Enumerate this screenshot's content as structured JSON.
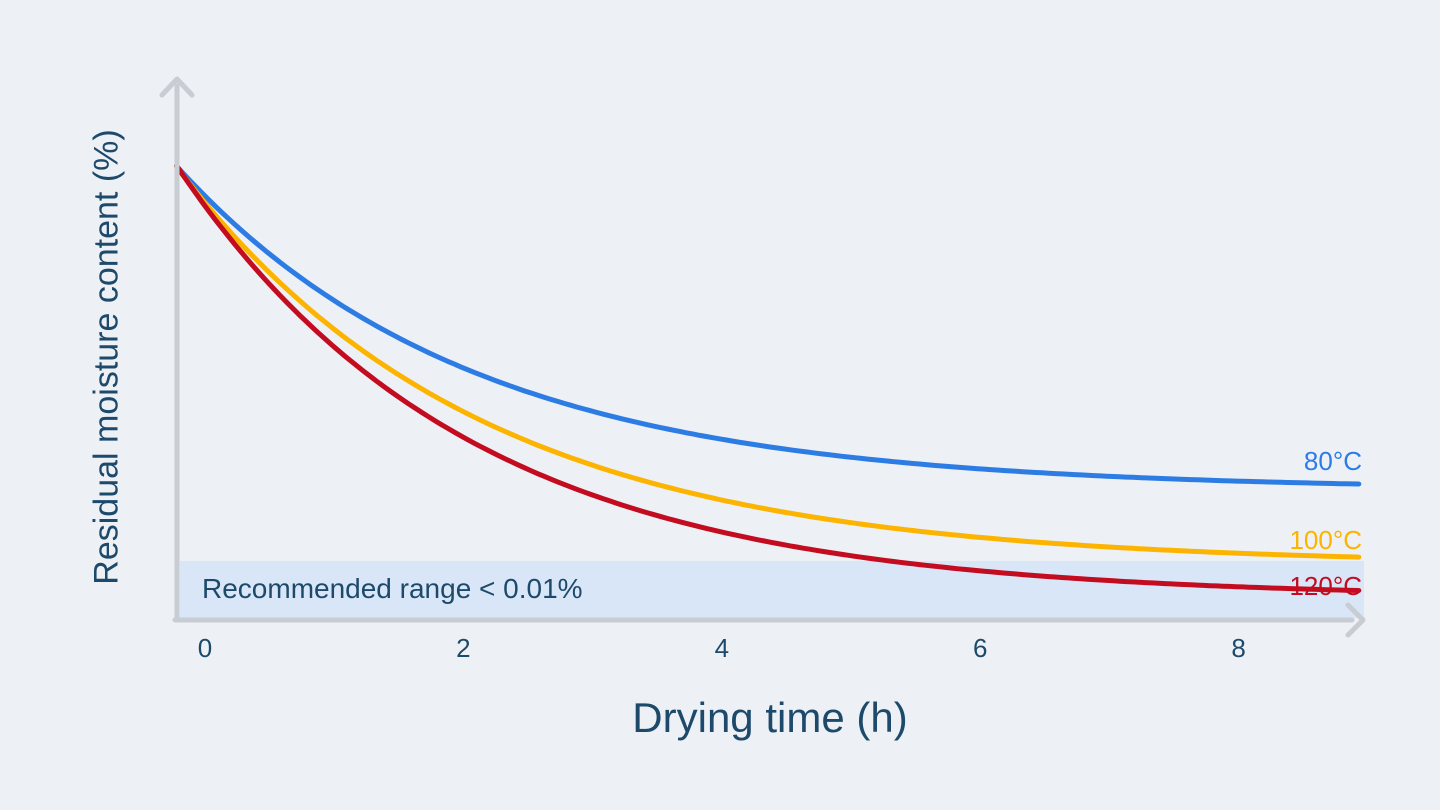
{
  "colors": {
    "background": "#edf1f6",
    "axis": "#c8ccd3",
    "ink_dark_blue": "#1d4a6b",
    "band_fill": "#d9e6f7",
    "series_80c": "#2d7ce4",
    "series_100c": "#fcb400",
    "series_120c": "#c40c20"
  },
  "chart_data": {
    "type": "line",
    "title": "",
    "xlabel": "Drying time (h)",
    "ylabel": "Residual moisture content (%)",
    "x_ticks": [
      0,
      2,
      4,
      6,
      8
    ],
    "x_range_hours": [
      -0.22,
      8.96
    ],
    "y_axis_note": "unlabeled axis; values below are relative moisture (100 = initial content at axis)",
    "grid": false,
    "legend_position": "labels at right end of each curve",
    "initial_relative": 100,
    "t_initial": -0.22,
    "band": {
      "label": "Recommended range < 0.01%",
      "from_relative": 0,
      "to_relative": 13.2
    },
    "series": [
      {
        "name": "80°C",
        "color": "#2d7ce4",
        "model": {
          "type": "exponential_decay",
          "baseline": 28.8,
          "amplitude": 65.0,
          "k_per_hour": 0.44
        },
        "x": [
          0,
          1,
          2,
          3,
          4,
          5,
          6,
          7,
          8,
          9
        ],
        "values": [
          93.8,
          70.7,
          55.8,
          46.2,
          40.0,
          36.0,
          33.4,
          31.7,
          30.6,
          30.0
        ]
      },
      {
        "name": "100°C",
        "color": "#fcb400",
        "model": {
          "type": "exponential_decay",
          "baseline": 12.2,
          "amplitude": 80.1,
          "k_per_hour": 0.43
        },
        "x": [
          0,
          1,
          2,
          3,
          4,
          5,
          6,
          7,
          8,
          9
        ],
        "values": [
          92.3,
          64.3,
          46.1,
          34.3,
          26.6,
          21.5,
          18.3,
          16.1,
          14.7,
          13.8
        ]
      },
      {
        "name": "120°C",
        "color": "#c40c20",
        "model": {
          "type": "exponential_decay",
          "baseline": 4.9,
          "amplitude": 86.7,
          "k_per_hour": 0.446
        },
        "x": [
          0,
          1,
          2,
          3,
          4,
          5,
          6,
          7,
          8,
          9
        ],
        "values": [
          91.6,
          60.4,
          40.4,
          27.6,
          19.5,
          14.2,
          10.8,
          8.6,
          7.2,
          6.3
        ]
      }
    ]
  }
}
